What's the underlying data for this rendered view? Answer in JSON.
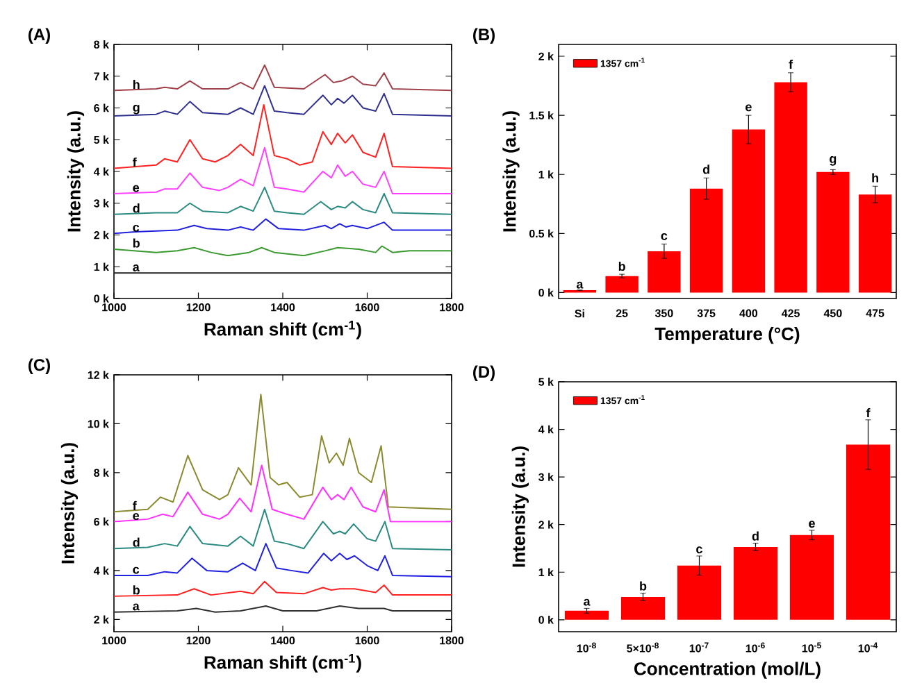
{
  "chart_data": [
    {
      "type": "line",
      "title": "(A)",
      "xlabel": "Raman shift (cm$^{-1}$)",
      "ylabel": "Intensity (a.u.)",
      "xlim": [
        1000,
        1800
      ],
      "ylim": [
        0,
        8000
      ],
      "xticks": [
        1000,
        1200,
        1400,
        1600,
        1800
      ],
      "yticks": [
        {
          "value": 0,
          "label": "0 k"
        },
        {
          "value": 1000,
          "label": "1 k"
        },
        {
          "value": 2000,
          "label": "2 k"
        },
        {
          "value": 3000,
          "label": "3 k"
        },
        {
          "value": 4000,
          "label": "4 k"
        },
        {
          "value": 5000,
          "label": "5 k"
        },
        {
          "value": 6000,
          "label": "6 k"
        },
        {
          "value": 7000,
          "label": "7 k"
        },
        {
          "value": 8000,
          "label": "8 k"
        }
      ],
      "series": [
        {
          "name": "h",
          "color": "#a0404a",
          "x": [
            1000,
            1100,
            1120,
            1150,
            1180,
            1210,
            1270,
            1300,
            1330,
            1357,
            1380,
            1450,
            1500,
            1520,
            1540,
            1565,
            1590,
            1620,
            1640,
            1660,
            1800
          ],
          "values": [
            6550,
            6600,
            6650,
            6600,
            6850,
            6600,
            6600,
            6800,
            6600,
            7350,
            6650,
            6600,
            7050,
            6800,
            6850,
            7000,
            6750,
            6700,
            7100,
            6600,
            6550
          ]
        },
        {
          "name": "g",
          "color": "#303090",
          "x": [
            1000,
            1100,
            1120,
            1150,
            1180,
            1210,
            1270,
            1300,
            1330,
            1357,
            1380,
            1410,
            1450,
            1495,
            1515,
            1530,
            1545,
            1565,
            1590,
            1620,
            1640,
            1660,
            1800
          ],
          "values": [
            5750,
            5800,
            5900,
            5800,
            6200,
            5850,
            5800,
            6000,
            5800,
            6700,
            5900,
            5850,
            5800,
            6400,
            6100,
            6300,
            6150,
            6400,
            6000,
            5900,
            6450,
            5800,
            5750
          ]
        },
        {
          "name": "f",
          "color": "#ff2020",
          "x": [
            1000,
            1100,
            1120,
            1150,
            1180,
            1210,
            1240,
            1270,
            1300,
            1330,
            1355,
            1380,
            1410,
            1440,
            1470,
            1495,
            1515,
            1530,
            1548,
            1565,
            1590,
            1620,
            1640,
            1660,
            1800
          ],
          "values": [
            4100,
            4200,
            4400,
            4300,
            5000,
            4400,
            4300,
            4500,
            4850,
            4500,
            6100,
            4500,
            4400,
            4200,
            4300,
            5250,
            4850,
            5200,
            4900,
            5150,
            4600,
            4450,
            5200,
            4150,
            4100
          ]
        },
        {
          "name": "e",
          "color": "#ff40ff",
          "x": [
            1000,
            1100,
            1120,
            1150,
            1180,
            1210,
            1250,
            1270,
            1300,
            1330,
            1357,
            1380,
            1410,
            1450,
            1495,
            1515,
            1530,
            1548,
            1565,
            1590,
            1620,
            1640,
            1660,
            1800
          ],
          "values": [
            3300,
            3350,
            3450,
            3450,
            3950,
            3500,
            3400,
            3500,
            3750,
            3550,
            4750,
            3500,
            3450,
            3350,
            4000,
            3800,
            4200,
            3850,
            4000,
            3600,
            3500,
            4000,
            3300,
            3300
          ]
        },
        {
          "name": "d",
          "color": "#2a8a80",
          "x": [
            1000,
            1100,
            1150,
            1180,
            1210,
            1270,
            1300,
            1330,
            1357,
            1380,
            1410,
            1450,
            1490,
            1515,
            1530,
            1548,
            1565,
            1590,
            1620,
            1640,
            1660,
            1800
          ],
          "values": [
            2650,
            2700,
            2700,
            3000,
            2750,
            2700,
            2900,
            2750,
            3500,
            2750,
            2700,
            2650,
            3050,
            2800,
            2900,
            2850,
            3050,
            2800,
            2700,
            3300,
            2700,
            2650
          ]
        },
        {
          "name": "c",
          "color": "#2020e0",
          "x": [
            1000,
            1050,
            1150,
            1190,
            1220,
            1270,
            1300,
            1330,
            1360,
            1390,
            1450,
            1500,
            1515,
            1535,
            1550,
            1565,
            1600,
            1640,
            1660,
            1800
          ],
          "values": [
            2050,
            2100,
            2150,
            2300,
            2200,
            2150,
            2250,
            2150,
            2500,
            2200,
            2150,
            2300,
            2200,
            2350,
            2250,
            2300,
            2200,
            2400,
            2150,
            2150
          ]
        },
        {
          "name": "b",
          "color": "#3a9a30",
          "x": [
            1000,
            1100,
            1150,
            1190,
            1230,
            1270,
            1320,
            1350,
            1380,
            1450,
            1500,
            1530,
            1580,
            1620,
            1635,
            1660,
            1700,
            1800
          ],
          "values": [
            1550,
            1450,
            1500,
            1600,
            1450,
            1350,
            1450,
            1600,
            1450,
            1350,
            1500,
            1600,
            1550,
            1450,
            1650,
            1450,
            1500,
            1500
          ]
        },
        {
          "name": "a",
          "color": "#202020",
          "x": [
            1000,
            1400,
            1800
          ],
          "values": [
            800,
            800,
            800
          ]
        }
      ]
    },
    {
      "type": "bar",
      "title": "(B)",
      "xlabel": "Temperature (°C)",
      "ylabel": "Intensity (a.u.)",
      "legend": "top left",
      "categories": [
        "Si",
        "25",
        "350",
        "375",
        "400",
        "425",
        "450",
        "475"
      ],
      "ylim": [
        -50,
        2100
      ],
      "yticks": [
        {
          "value": 0,
          "label": "0 k"
        },
        {
          "value": 500,
          "label": "0.5 k"
        },
        {
          "value": 1000,
          "label": "1 k"
        },
        {
          "value": 1500,
          "label": "1.5 k"
        },
        {
          "value": 2000,
          "label": "2 k"
        }
      ],
      "series": [
        {
          "name": "1357 cm$^{-1}$",
          "color": "#ff0000",
          "values": [
            20,
            140,
            350,
            880,
            1380,
            1780,
            1020,
            830
          ],
          "errors": [
            null,
            15,
            60,
            90,
            120,
            80,
            20,
            70
          ]
        }
      ],
      "annotations": [
        {
          "text": "a",
          "x": "Si",
          "y": 20
        },
        {
          "text": "b",
          "x": "25",
          "y": 170
        },
        {
          "text": "c",
          "x": "350",
          "y": 430
        },
        {
          "text": "d",
          "x": "375",
          "y": 990
        },
        {
          "text": "e",
          "x": "400",
          "y": 1520
        },
        {
          "text": "f",
          "x": "425",
          "y": 1880
        },
        {
          "text": "g",
          "x": "450",
          "y": 1060
        },
        {
          "text": "h",
          "x": "475",
          "y": 920
        }
      ]
    },
    {
      "type": "line",
      "title": "(C)",
      "xlabel": "Raman shift (cm$^{-1}$)",
      "ylabel": "Intensity (a.u.)",
      "xlim": [
        1000,
        1800
      ],
      "ylim": [
        1500,
        12000
      ],
      "xticks": [
        1000,
        1200,
        1400,
        1600,
        1800
      ],
      "yticks": [
        {
          "value": 2000,
          "label": "2 k"
        },
        {
          "value": 4000,
          "label": "4 k"
        },
        {
          "value": 6000,
          "label": "6 k"
        },
        {
          "value": 8000,
          "label": "8 k"
        },
        {
          "value": 10000,
          "label": "10 k"
        },
        {
          "value": 12000,
          "label": "12 k"
        }
      ],
      "series": [
        {
          "name": "f",
          "color": "#8a8a30",
          "x": [
            1000,
            1080,
            1110,
            1140,
            1175,
            1210,
            1250,
            1270,
            1295,
            1325,
            1348,
            1370,
            1390,
            1410,
            1440,
            1470,
            1492,
            1510,
            1527,
            1543,
            1558,
            1580,
            1610,
            1633,
            1650,
            1800
          ],
          "values": [
            6400,
            6500,
            7000,
            6800,
            8700,
            7300,
            6900,
            7100,
            8200,
            7500,
            11200,
            7800,
            7500,
            7600,
            7000,
            7100,
            9500,
            8400,
            8800,
            8300,
            9400,
            8000,
            7600,
            9100,
            6600,
            6500
          ]
        },
        {
          "name": "e",
          "color": "#ff30ff",
          "x": [
            1000,
            1080,
            1115,
            1140,
            1175,
            1210,
            1250,
            1270,
            1298,
            1325,
            1350,
            1375,
            1410,
            1450,
            1495,
            1515,
            1530,
            1545,
            1562,
            1590,
            1620,
            1640,
            1655,
            1800
          ],
          "values": [
            6000,
            6100,
            6300,
            6200,
            7200,
            6300,
            6100,
            6300,
            6950,
            6400,
            8300,
            6500,
            6300,
            6100,
            7400,
            6900,
            7100,
            6900,
            7400,
            6600,
            6400,
            7300,
            6000,
            6000
          ]
        },
        {
          "name": "d",
          "color": "#2a8a80",
          "x": [
            1000,
            1080,
            1120,
            1150,
            1180,
            1210,
            1270,
            1300,
            1330,
            1357,
            1380,
            1410,
            1450,
            1495,
            1520,
            1535,
            1548,
            1568,
            1600,
            1620,
            1642,
            1660,
            1800
          ],
          "values": [
            4900,
            4950,
            5100,
            5000,
            5800,
            5100,
            5000,
            5400,
            5000,
            6500,
            5200,
            5100,
            4900,
            6000,
            5500,
            5600,
            5500,
            5900,
            5300,
            5200,
            6000,
            4900,
            4850
          ]
        },
        {
          "name": "c",
          "color": "#2020e0",
          "x": [
            1000,
            1080,
            1120,
            1150,
            1185,
            1220,
            1270,
            1305,
            1335,
            1360,
            1385,
            1420,
            1460,
            1497,
            1515,
            1535,
            1552,
            1570,
            1600,
            1625,
            1642,
            1660,
            1800
          ],
          "values": [
            3800,
            3800,
            3950,
            3900,
            4500,
            4000,
            3950,
            4300,
            4000,
            5100,
            4100,
            4000,
            3900,
            4700,
            4400,
            4700,
            4450,
            4600,
            4200,
            4000,
            4600,
            3800,
            3750
          ]
        },
        {
          "name": "b",
          "color": "#ff2020",
          "x": [
            1000,
            1150,
            1190,
            1230,
            1300,
            1330,
            1357,
            1385,
            1450,
            1495,
            1515,
            1535,
            1570,
            1620,
            1640,
            1660,
            1800
          ],
          "values": [
            2950,
            3000,
            3250,
            3000,
            3150,
            3050,
            3550,
            3100,
            3050,
            3300,
            3200,
            3250,
            3250,
            3100,
            3400,
            3000,
            3000
          ]
        },
        {
          "name": "a",
          "color": "#303030",
          "x": [
            1000,
            1150,
            1195,
            1240,
            1300,
            1360,
            1400,
            1480,
            1535,
            1580,
            1640,
            1660,
            1800
          ],
          "values": [
            2300,
            2350,
            2450,
            2300,
            2350,
            2550,
            2350,
            2350,
            2550,
            2450,
            2450,
            2350,
            2350
          ]
        }
      ]
    },
    {
      "type": "bar",
      "title": "(D)",
      "xlabel": "Concentration (mol/L)",
      "ylabel": "Intensity (a.u.)",
      "legend": "top left",
      "categories": [
        "10$^{-8}$",
        "5×10$^{-8}$",
        "10$^{-7}$",
        "10$^{-6}$",
        "10$^{-5}$",
        "10$^{-4}$"
      ],
      "ylim": [
        -250,
        5000
      ],
      "yticks": [
        {
          "value": 0,
          "label": "0 k"
        },
        {
          "value": 1000,
          "label": "1 k"
        },
        {
          "value": 2000,
          "label": "2 k"
        },
        {
          "value": 3000,
          "label": "3 k"
        },
        {
          "value": 4000,
          "label": "4 k"
        },
        {
          "value": 5000,
          "label": "5 k"
        }
      ],
      "series": [
        {
          "name": "1357 cm$^{-1}$",
          "color": "#ff0000",
          "values": [
            190,
            480,
            1140,
            1530,
            1780,
            3680
          ],
          "errors": [
            50,
            80,
            200,
            80,
            100,
            520
          ]
        }
      ],
      "annotations": [
        {
          "text": "a",
          "x": "10$^{-8}$",
          "y": 260
        },
        {
          "text": "b",
          "x": "5×10$^{-8}$",
          "y": 580
        },
        {
          "text": "c",
          "x": "10$^{-7}$",
          "y": 1360
        },
        {
          "text": "d",
          "x": "10$^{-6}$",
          "y": 1630
        },
        {
          "text": "e",
          "x": "10$^{-5}$",
          "y": 1900
        },
        {
          "text": "f",
          "x": "10$^{-4}$",
          "y": 4220
        }
      ]
    }
  ]
}
